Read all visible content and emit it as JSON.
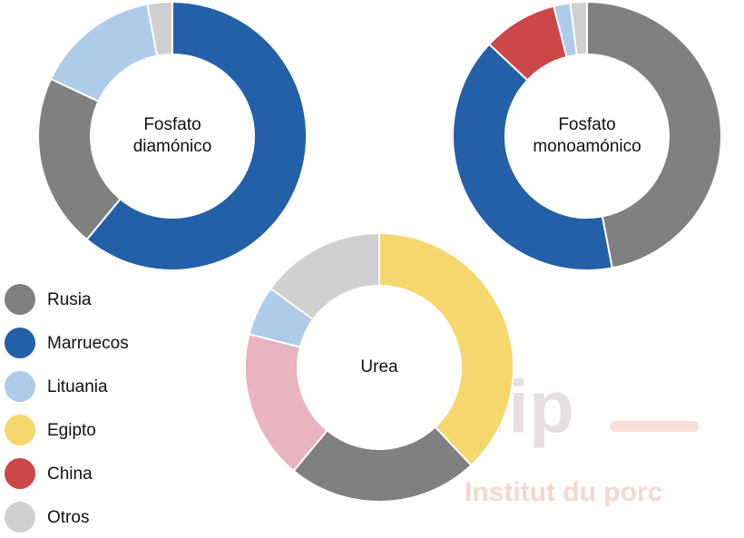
{
  "chart_data": [
    {
      "type": "pie",
      "title": [
        "Fosfato",
        "diamónico"
      ],
      "categories": [
        "Marruecos",
        "Rusia",
        "Lituania",
        "Otros"
      ],
      "values": [
        61,
        21,
        15,
        3
      ],
      "colors": [
        "#2460a7",
        "#808080",
        "#aecbea",
        "#d0d0d0"
      ]
    },
    {
      "type": "pie",
      "title": [
        "Fosfato",
        "monoamónico"
      ],
      "categories": [
        "Rusia",
        "Marruecos",
        "China",
        "Lituania",
        "Otros"
      ],
      "values": [
        47,
        40,
        9,
        2,
        2
      ],
      "colors": [
        "#808080",
        "#2460a7",
        "#cc4748",
        "#aecbea",
        "#d0d0d0"
      ]
    },
    {
      "type": "pie",
      "title": [
        "Urea"
      ],
      "categories": [
        "Egipto",
        "Rusia",
        null,
        "Lituania",
        "Otros"
      ],
      "values": [
        38,
        23,
        18,
        6,
        15
      ],
      "colors": [
        "#f5d76e",
        "#808080",
        "#e8b4c0",
        "#aecbea",
        "#d0d0d0"
      ]
    }
  ],
  "legend": [
    {
      "name": "Rusia",
      "color": "#808080"
    },
    {
      "name": "Marruecos",
      "color": "#2460a7"
    },
    {
      "name": "Lituania",
      "color": "#aecbea"
    },
    {
      "name": "Egipto",
      "color": "#f5d76e"
    },
    {
      "name": "China",
      "color": "#cc4748"
    },
    {
      "name": "Otros",
      "color": "#d0d0d0"
    }
  ],
  "watermark": {
    "logo": "ifip",
    "subtitle": "Institut du porc"
  }
}
